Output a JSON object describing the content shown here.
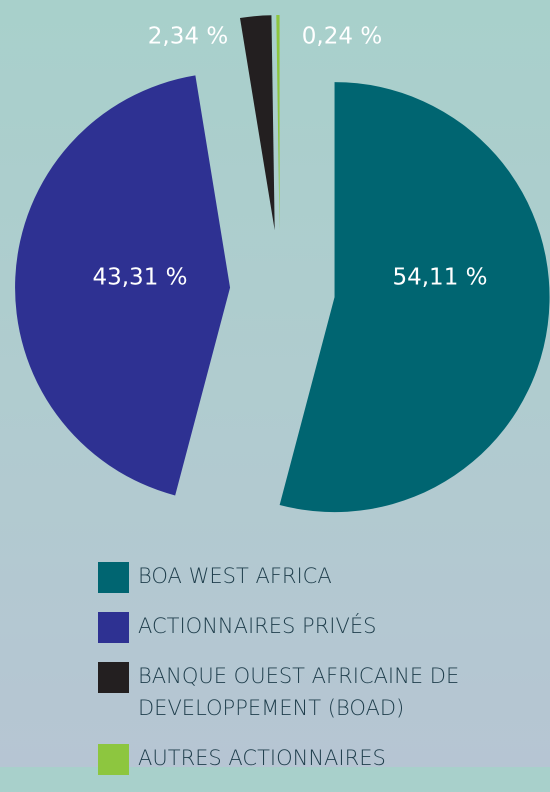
{
  "chart_data": {
    "type": "pie",
    "categories": [
      "BOA WEST AFRICA",
      "ACTIONNAIRES PRIVÉS",
      "BANQUE OUEST AFRICAINE DE DEVELOPPEMENT (BOAD)",
      "AUTRES ACTIONNAIRES"
    ],
    "values": [
      54.11,
      43.31,
      2.34,
      0.24
    ],
    "value_labels": [
      "54,11 %",
      "43,31 %",
      "2,34 %",
      "0,24 %"
    ],
    "colors": [
      "#006571",
      "#2e3192",
      "#231f20",
      "#8dc63f"
    ],
    "legend": "bottom"
  }
}
